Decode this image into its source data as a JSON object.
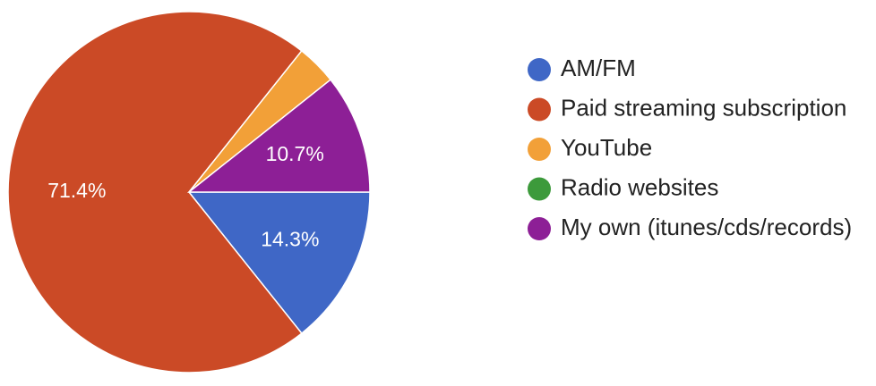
{
  "chart_data": {
    "type": "pie",
    "title": "",
    "legend_position": "right",
    "slices": [
      {
        "label": "AM/FM",
        "value": 14.3,
        "display": "14.3%",
        "color": "#3f67c6"
      },
      {
        "label": "Paid streaming subscription",
        "value": 71.4,
        "display": "71.4%",
        "color": "#cb4a26"
      },
      {
        "label": "YouTube",
        "value": 3.6,
        "display": "",
        "color": "#f2a038"
      },
      {
        "label": "Radio websites",
        "value": 0,
        "display": "",
        "color": "#3c9a3b"
      },
      {
        "label": "My own (itunes/cds/records)",
        "value": 10.7,
        "display": "10.7%",
        "color": "#8d1f96"
      }
    ]
  }
}
